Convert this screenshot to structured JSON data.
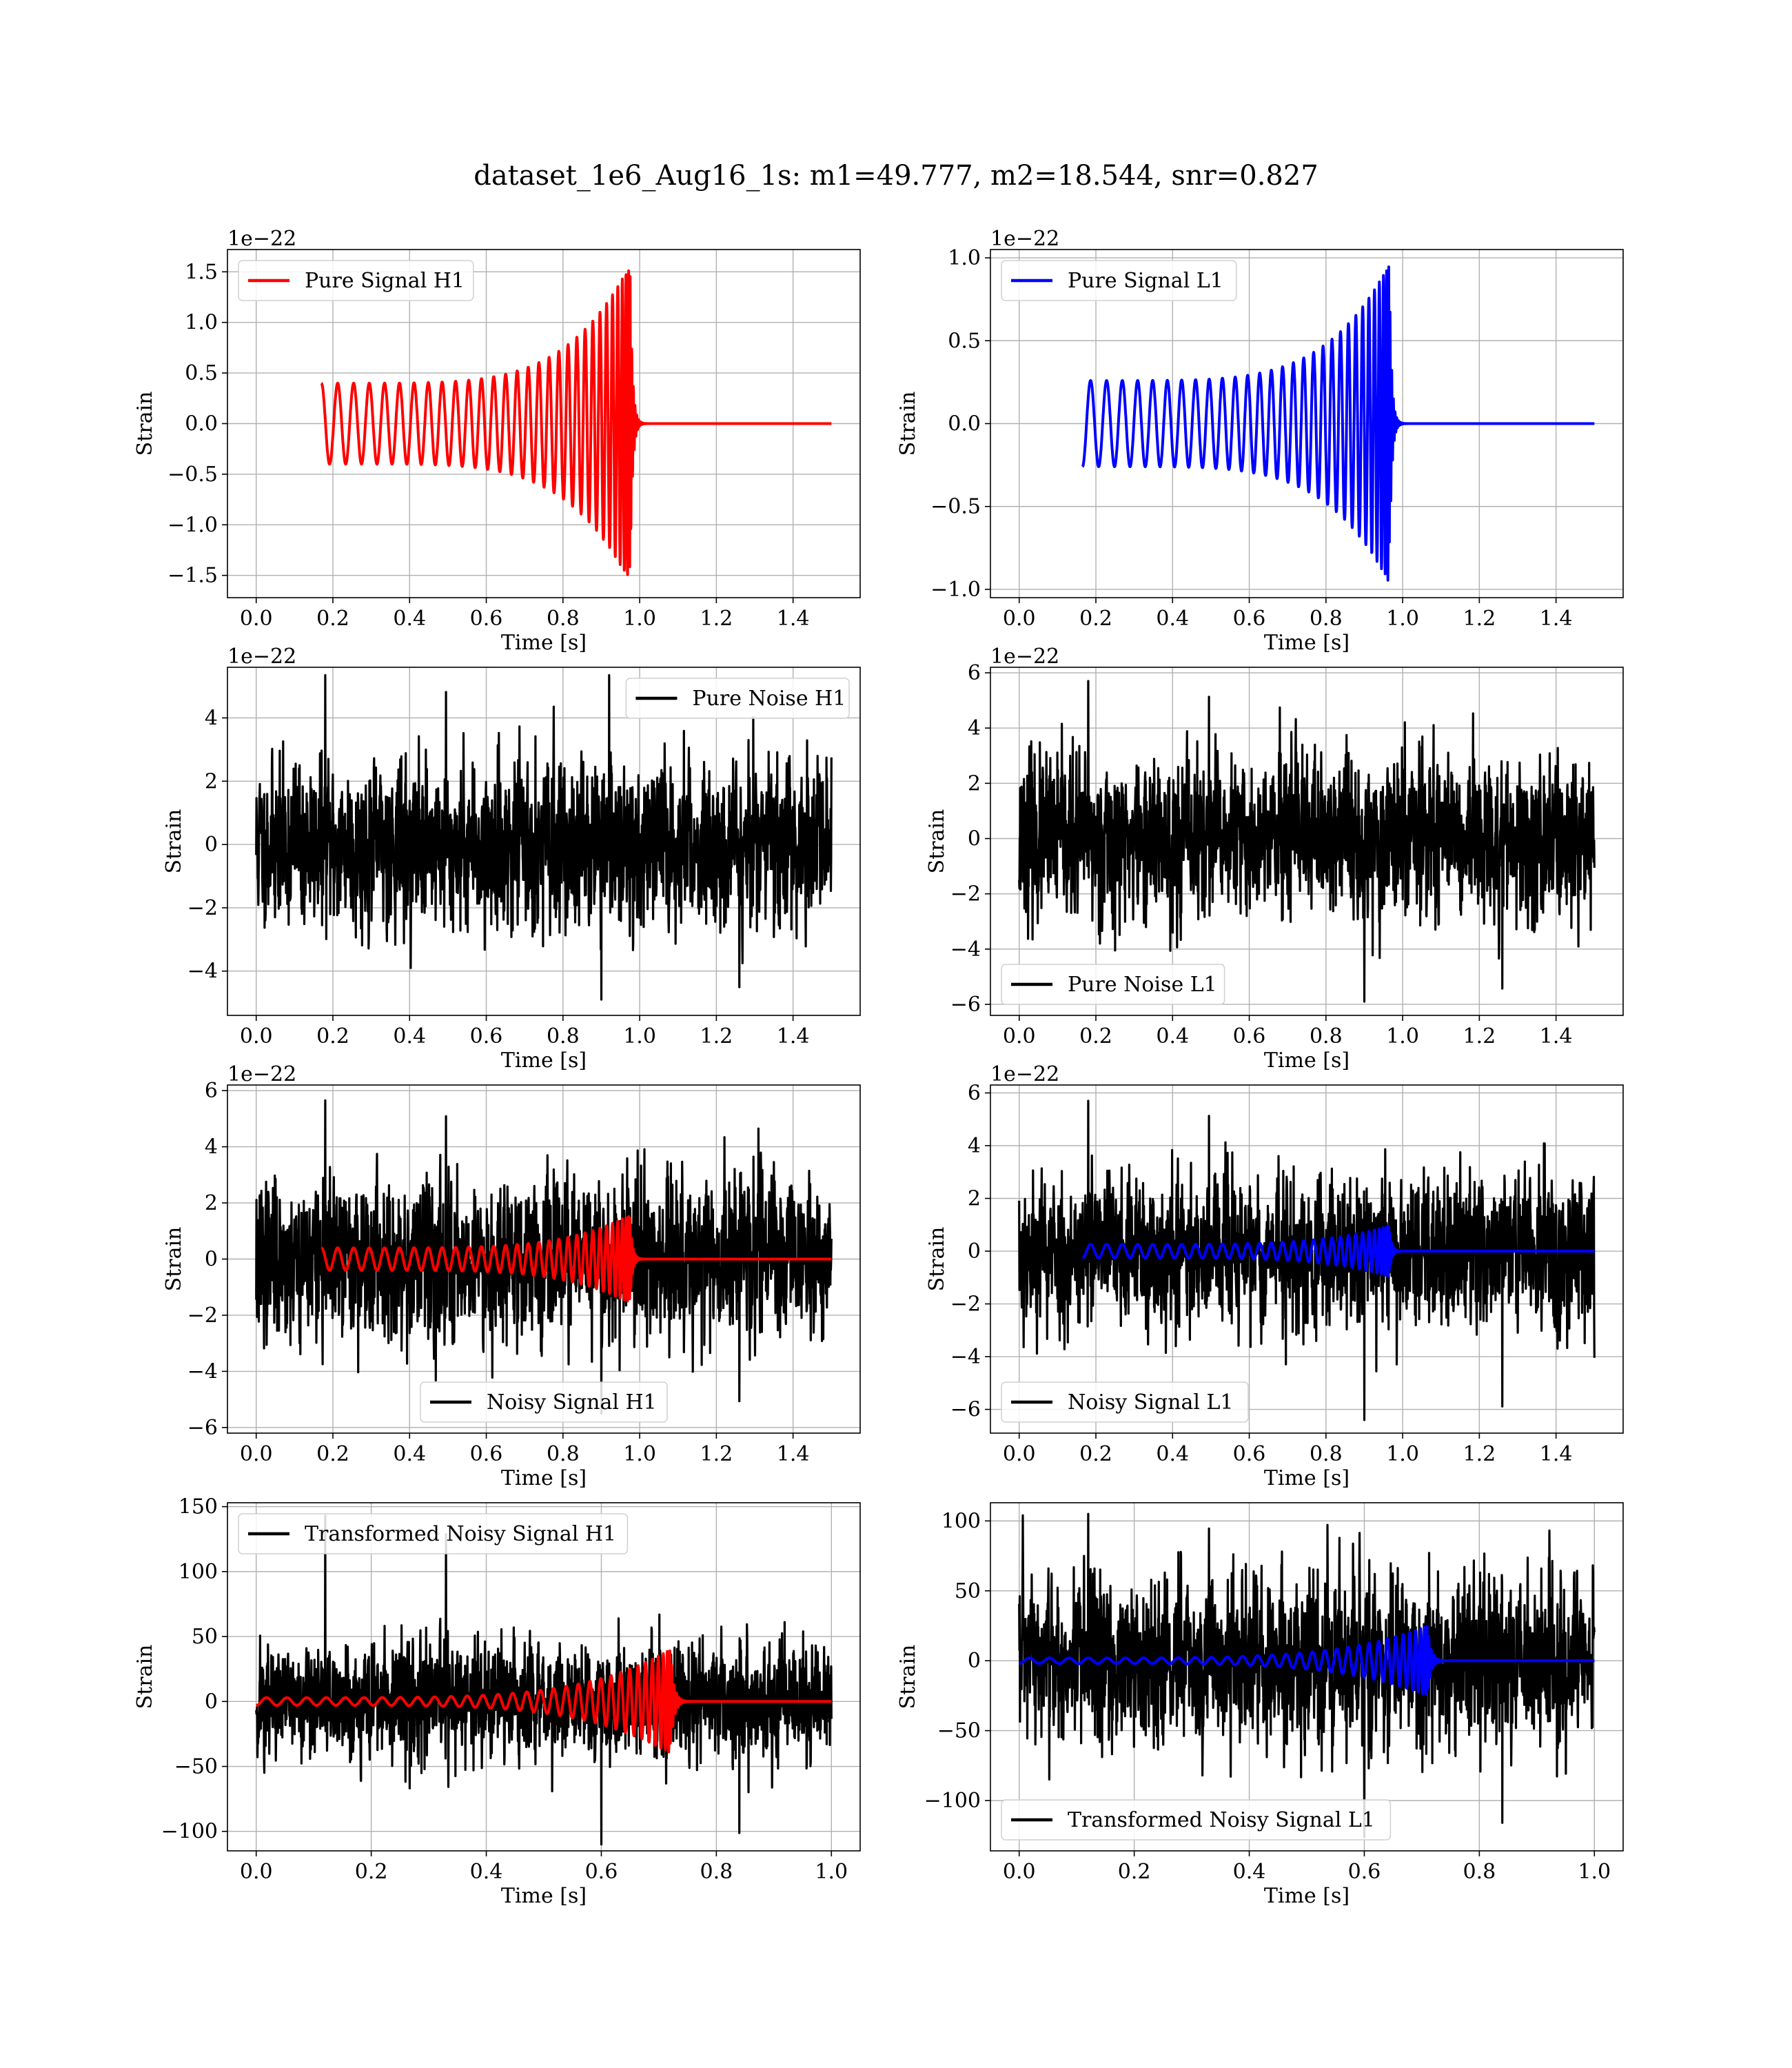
{
  "figure": {
    "suptitle": "dataset_1e6_Aug16_1s: m1=49.777, m2=18.544, snr=0.827"
  },
  "colors": {
    "h1_signal": "#ff0000",
    "l1_signal": "#0000ff",
    "noise": "#000000",
    "grid": "#b0b0b0"
  },
  "chart_data": [
    {
      "id": "pure-signal-h1",
      "type": "line",
      "xlabel": "Time [s]",
      "ylabel": "Strain",
      "offset_text": "1e−22",
      "xlim": [
        -0.075,
        1.575
      ],
      "ylim": [
        -1.72,
        1.72
      ],
      "xticks": [
        0.0,
        0.2,
        0.4,
        0.6,
        0.8,
        1.0,
        1.2,
        1.4
      ],
      "xtick_labels": [
        "0.0",
        "0.2",
        "0.4",
        "0.6",
        "0.8",
        "1.0",
        "1.2",
        "1.4"
      ],
      "yticks": [
        -1.5,
        -1.0,
        -0.5,
        0.0,
        0.5,
        1.0,
        1.5
      ],
      "ytick_labels": [
        "−1.5",
        "−1.0",
        "−0.5",
        "0.0",
        "0.5",
        "1.0",
        "1.5"
      ],
      "legend_position": "upper left",
      "grid": true,
      "series": [
        {
          "name": "Pure Signal H1",
          "kind": "chirp",
          "color": "#ff0000",
          "t_start": 0.17,
          "t_merge": 0.975,
          "x_end": 1.5,
          "amp_start": 0.4,
          "amp_peak": 1.57,
          "cycles": 30,
          "sign": -1
        }
      ]
    },
    {
      "id": "pure-signal-l1",
      "type": "line",
      "xlabel": "Time [s]",
      "ylabel": "Strain",
      "offset_text": "1e−22",
      "xlim": [
        -0.075,
        1.575
      ],
      "ylim": [
        -1.05,
        1.05
      ],
      "xticks": [
        0.0,
        0.2,
        0.4,
        0.6,
        0.8,
        1.0,
        1.2,
        1.4
      ],
      "xtick_labels": [
        "0.0",
        "0.2",
        "0.4",
        "0.6",
        "0.8",
        "1.0",
        "1.2",
        "1.4"
      ],
      "yticks": [
        -1.0,
        -0.5,
        0.0,
        0.5,
        1.0
      ],
      "ytick_labels": [
        "−1.0",
        "−0.5",
        "0.0",
        "0.5",
        "1.0"
      ],
      "legend_position": "upper left",
      "grid": true,
      "series": [
        {
          "name": "Pure Signal L1",
          "kind": "chirp",
          "color": "#0000ff",
          "t_start": 0.165,
          "t_merge": 0.965,
          "x_end": 1.5,
          "amp_start": 0.26,
          "amp_peak": 0.96,
          "cycles": 30,
          "sign": 1
        }
      ]
    },
    {
      "id": "pure-noise-h1",
      "type": "line",
      "xlabel": "Time [s]",
      "ylabel": "Strain",
      "offset_text": "1e−22",
      "xlim": [
        -0.075,
        1.575
      ],
      "ylim": [
        -5.4,
        5.6
      ],
      "xticks": [
        0.0,
        0.2,
        0.4,
        0.6,
        0.8,
        1.0,
        1.2,
        1.4
      ],
      "xtick_labels": [
        "0.0",
        "0.2",
        "0.4",
        "0.6",
        "0.8",
        "1.0",
        "1.2",
        "1.4"
      ],
      "yticks": [
        -4,
        -2,
        0,
        2,
        4
      ],
      "ytick_labels": [
        "−4",
        "−2",
        "0",
        "2",
        "4"
      ],
      "legend_position": "upper right",
      "grid": true,
      "series": [
        {
          "name": "Pure Noise H1",
          "kind": "noise",
          "color": "#000000",
          "x_start": 0.0,
          "x_end": 1.5,
          "sigma": 1.6,
          "max": 5.35,
          "min": -4.9,
          "seed": 11
        }
      ]
    },
    {
      "id": "pure-noise-l1",
      "type": "line",
      "xlabel": "Time [s]",
      "ylabel": "Strain",
      "offset_text": "1e−22",
      "xlim": [
        -0.075,
        1.575
      ],
      "ylim": [
        -6.4,
        6.2
      ],
      "xticks": [
        0.0,
        0.2,
        0.4,
        0.6,
        0.8,
        1.0,
        1.2,
        1.4
      ],
      "xtick_labels": [
        "0.0",
        "0.2",
        "0.4",
        "0.6",
        "0.8",
        "1.0",
        "1.2",
        "1.4"
      ],
      "yticks": [
        -6,
        -4,
        -2,
        0,
        2,
        4,
        6
      ],
      "ytick_labels": [
        "−6",
        "−4",
        "−2",
        "0",
        "2",
        "4",
        "6"
      ],
      "legend_position": "lower left",
      "grid": true,
      "series": [
        {
          "name": "Pure Noise L1",
          "kind": "noise",
          "color": "#000000",
          "x_start": 0.0,
          "x_end": 1.5,
          "sigma": 1.8,
          "max": 5.7,
          "min": -5.9,
          "seed": 23
        }
      ]
    },
    {
      "id": "noisy-signal-h1",
      "type": "line",
      "xlabel": "Time [s]",
      "ylabel": "Strain",
      "offset_text": "1e−22",
      "xlim": [
        -0.075,
        1.575
      ],
      "ylim": [
        -6.2,
        6.2
      ],
      "xticks": [
        0.0,
        0.2,
        0.4,
        0.6,
        0.8,
        1.0,
        1.2,
        1.4
      ],
      "xtick_labels": [
        "0.0",
        "0.2",
        "0.4",
        "0.6",
        "0.8",
        "1.0",
        "1.2",
        "1.4"
      ],
      "yticks": [
        -6,
        -4,
        -2,
        0,
        2,
        4,
        6
      ],
      "ytick_labels": [
        "−6",
        "−4",
        "−2",
        "0",
        "2",
        "4",
        "6"
      ],
      "legend_position": "lower center",
      "grid": true,
      "series": [
        {
          "name": "Noisy Signal H1",
          "kind": "noise",
          "color": "#000000",
          "x_start": 0.0,
          "x_end": 1.5,
          "sigma": 1.75,
          "max": 5.65,
          "min": -5.5,
          "seed": 37
        },
        {
          "name": "",
          "kind": "chirp",
          "color": "#ff0000",
          "t_start": 0.17,
          "t_merge": 0.975,
          "x_end": 1.5,
          "amp_start": 0.4,
          "amp_peak": 1.57,
          "cycles": 30,
          "sign": -1
        }
      ]
    },
    {
      "id": "noisy-signal-l1",
      "type": "line",
      "xlabel": "Time [s]",
      "ylabel": "Strain",
      "offset_text": "1e−22",
      "xlim": [
        -0.075,
        1.575
      ],
      "ylim": [
        -6.9,
        6.3
      ],
      "xticks": [
        0.0,
        0.2,
        0.4,
        0.6,
        0.8,
        1.0,
        1.2,
        1.4
      ],
      "xtick_labels": [
        "0.0",
        "0.2",
        "0.4",
        "0.6",
        "0.8",
        "1.0",
        "1.2",
        "1.4"
      ],
      "yticks": [
        -6,
        -4,
        -2,
        0,
        2,
        4,
        6
      ],
      "ytick_labels": [
        "−6",
        "−4",
        "−2",
        "0",
        "2",
        "4",
        "6"
      ],
      "legend_position": "lower left",
      "grid": true,
      "series": [
        {
          "name": "Noisy Signal L1",
          "kind": "noise",
          "color": "#000000",
          "x_start": 0.0,
          "x_end": 1.5,
          "sigma": 1.8,
          "max": 5.7,
          "min": -6.4,
          "seed": 53
        },
        {
          "name": "",
          "kind": "chirp",
          "color": "#0000ff",
          "t_start": 0.165,
          "t_merge": 0.965,
          "x_end": 1.5,
          "amp_start": 0.26,
          "amp_peak": 0.96,
          "cycles": 30,
          "sign": 1
        }
      ]
    },
    {
      "id": "transformed-noisy-signal-h1",
      "type": "line",
      "xlabel": "Time [s]",
      "ylabel": "Strain",
      "offset_text": "",
      "xlim": [
        -0.05,
        1.05
      ],
      "ylim": [
        -115,
        153
      ],
      "xticks": [
        0.0,
        0.2,
        0.4,
        0.6,
        0.8,
        1.0
      ],
      "xtick_labels": [
        "0.0",
        "0.2",
        "0.4",
        "0.6",
        "0.8",
        "1.0"
      ],
      "yticks": [
        -100,
        -50,
        0,
        50,
        100,
        150
      ],
      "ytick_labels": [
        "−100",
        "−50",
        "0",
        "50",
        "100",
        "150"
      ],
      "legend_position": "upper left",
      "grid": true,
      "series": [
        {
          "name": "Transformed Noisy Signal H1",
          "kind": "noise",
          "color": "#000000",
          "x_start": 0.0,
          "x_end": 1.0,
          "sigma": 28,
          "max": 143,
          "min": -110,
          "seed": 71
        },
        {
          "name": "",
          "kind": "chirp",
          "color": "#ff0000",
          "t_start": 0.0,
          "t_merge": 0.72,
          "x_end": 1.0,
          "amp_start": 3,
          "amp_peak": 40,
          "cycles": 32,
          "sign": 1
        }
      ]
    },
    {
      "id": "transformed-noisy-signal-l1",
      "type": "line",
      "xlabel": "Time [s]",
      "ylabel": "Strain",
      "offset_text": "",
      "xlim": [
        -0.05,
        1.05
      ],
      "ylim": [
        -136,
        113
      ],
      "xticks": [
        0.0,
        0.2,
        0.4,
        0.6,
        0.8,
        1.0
      ],
      "xtick_labels": [
        "0.0",
        "0.2",
        "0.4",
        "0.6",
        "0.8",
        "1.0"
      ],
      "yticks": [
        -100,
        -50,
        0,
        50,
        100
      ],
      "ytick_labels": [
        "−100",
        "−50",
        "0",
        "50",
        "100"
      ],
      "legend_position": "lower left",
      "grid": true,
      "series": [
        {
          "name": "Transformed Noisy Signal L1",
          "kind": "noise",
          "color": "#000000",
          "x_start": 0.0,
          "x_end": 1.0,
          "sigma": 38,
          "max": 105,
          "min": -126,
          "seed": 97
        },
        {
          "name": "",
          "kind": "chirp",
          "color": "#0000ff",
          "t_start": 0.0,
          "t_merge": 0.71,
          "x_end": 1.0,
          "amp_start": 2,
          "amp_peak": 25,
          "cycles": 32,
          "sign": 1
        }
      ]
    }
  ]
}
